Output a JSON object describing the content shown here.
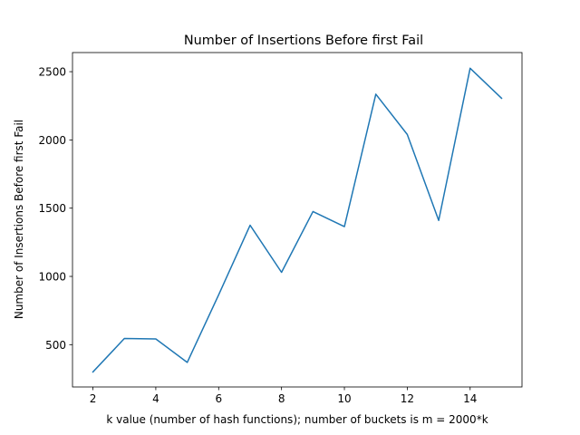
{
  "chart_data": {
    "type": "line",
    "title": "Number of Insertions Before first Fail",
    "xlabel": "k value (number of hash functions); number of buckets is m = 2000*k",
    "ylabel": "Number of Insertions Before first Fail",
    "xlim": [
      1.35,
      15.65
    ],
    "ylim": [
      190,
      2640
    ],
    "xticks": [
      2,
      4,
      6,
      8,
      10,
      12,
      14
    ],
    "yticks": [
      500,
      1000,
      1500,
      2000,
      2500
    ],
    "grid": false,
    "series": [
      {
        "color": "#1f77b4",
        "x": [
          2,
          3,
          4,
          5,
          6,
          7,
          8,
          9,
          10,
          11,
          12,
          13,
          14,
          15
        ],
        "y": [
          300,
          545,
          542,
          370,
          865,
          1375,
          1030,
          1475,
          1365,
          2335,
          2040,
          1410,
          2525,
          2305
        ]
      }
    ]
  }
}
